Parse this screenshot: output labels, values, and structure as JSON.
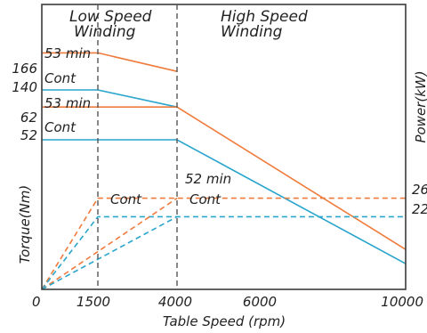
{
  "chart_data": {
    "type": "line",
    "xlabel": "Table Speed (rpm)",
    "y_left_label": "Torque(Nm)",
    "y_right_label": "Power(kW)",
    "x_ticks": [
      "0",
      "1500",
      "4000",
      "6000",
      "10000"
    ],
    "x_range": [
      0,
      10000
    ],
    "y_range": [
      0,
      200
    ],
    "torque_ticks": [
      "166",
      "140",
      "62",
      "52"
    ],
    "power_ticks": [
      "26",
      "22"
    ],
    "regions": {
      "low": "Low Speed Winding",
      "high": "High Speed Winding"
    },
    "region_dividers": [
      1500,
      4000
    ],
    "annotations": {
      "a53_top": "53 min",
      "cont_top": "Cont",
      "a53_low": "53 min",
      "cont_low": "Cont",
      "a52": "52 min",
      "cont_pw_low": "Cont",
      "cont_pw_high": "Cont"
    },
    "colors": {
      "orange": "#ef7b3c",
      "blue": "#2aa5cc",
      "frame": "#3b3b3b",
      "divider": "#555555"
    },
    "series": [
      {
        "style": "solid",
        "color": "orange",
        "points": [
          [
            0,
            166
          ],
          [
            1500,
            166
          ],
          [
            4000,
            153
          ]
        ]
      },
      {
        "style": "solid",
        "color": "blue",
        "points": [
          [
            0,
            140
          ],
          [
            1500,
            140
          ],
          [
            4000,
            128
          ]
        ]
      },
      {
        "style": "solid",
        "color": "orange",
        "points": [
          [
            0,
            128
          ],
          [
            4000,
            128
          ],
          [
            10000,
            28
          ]
        ]
      },
      {
        "style": "solid",
        "color": "blue",
        "points": [
          [
            0,
            105
          ],
          [
            4000,
            105
          ],
          [
            10000,
            18
          ]
        ]
      },
      {
        "style": "dashed",
        "color": "orange",
        "points": [
          [
            0,
            0
          ],
          [
            1500,
            64
          ],
          [
            10000,
            64
          ]
        ]
      },
      {
        "style": "dashed",
        "color": "blue",
        "points": [
          [
            0,
            0
          ],
          [
            1500,
            51
          ],
          [
            10000,
            51
          ]
        ]
      },
      {
        "style": "dashed",
        "color": "orange",
        "points": [
          [
            0,
            0
          ],
          [
            4000,
            64
          ]
        ]
      },
      {
        "style": "dashed",
        "color": "blue",
        "points": [
          [
            0,
            0
          ],
          [
            4000,
            51
          ]
        ]
      }
    ]
  }
}
